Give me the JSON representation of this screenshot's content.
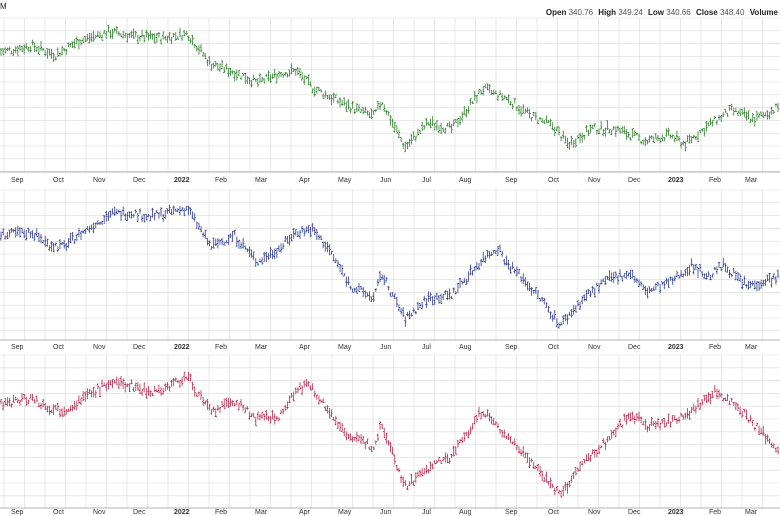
{
  "header": {
    "ticker_fragment": "M",
    "open_label": "Open",
    "open_value": "340.76",
    "high_label": "High",
    "high_value": "349.24",
    "low_label": "Low",
    "low_value": "340.66",
    "close_label": "Close",
    "close_value": "348.40",
    "volume_label": "Volume"
  },
  "colors": {
    "panel_1_bars": "#2e7d2e",
    "panel_2_bars": "#2e3a8c",
    "panel_3_bars": "#b0284e",
    "grid": "#d9d9d9",
    "axis_text": "#333333"
  },
  "chart_data": [
    {
      "type": "ohlc",
      "xlabel_ticks": [
        "Sep",
        "Oct",
        "Nov",
        "Dec",
        "2022",
        "Feb",
        "Mar",
        "Apr",
        "May",
        "Jun",
        "Jul",
        "Aug",
        "Sep",
        "Oct",
        "Nov",
        "Dec",
        "2023",
        "Feb",
        "Mar"
      ],
      "bold_ticks": [
        "2022",
        "2023"
      ],
      "grid": true,
      "shape": [
        [
          0,
          0.78
        ],
        [
          0.04,
          0.82
        ],
        [
          0.07,
          0.76
        ],
        [
          0.1,
          0.85
        ],
        [
          0.14,
          0.91
        ],
        [
          0.17,
          0.88
        ],
        [
          0.21,
          0.87
        ],
        [
          0.24,
          0.9
        ],
        [
          0.27,
          0.7
        ],
        [
          0.3,
          0.65
        ],
        [
          0.33,
          0.58
        ],
        [
          0.36,
          0.64
        ],
        [
          0.38,
          0.66
        ],
        [
          0.4,
          0.55
        ],
        [
          0.43,
          0.47
        ],
        [
          0.46,
          0.4
        ],
        [
          0.48,
          0.36
        ],
        [
          0.49,
          0.46
        ],
        [
          0.52,
          0.16
        ],
        [
          0.55,
          0.32
        ],
        [
          0.58,
          0.28
        ],
        [
          0.62,
          0.54
        ],
        [
          0.65,
          0.48
        ],
        [
          0.68,
          0.37
        ],
        [
          0.71,
          0.3
        ],
        [
          0.73,
          0.18
        ],
        [
          0.76,
          0.28
        ],
        [
          0.79,
          0.28
        ],
        [
          0.83,
          0.2
        ],
        [
          0.86,
          0.24
        ],
        [
          0.88,
          0.18
        ],
        [
          0.91,
          0.3
        ],
        [
          0.94,
          0.4
        ],
        [
          0.97,
          0.34
        ],
        [
          1,
          0.42
        ]
      ]
    },
    {
      "type": "ohlc",
      "xlabel_ticks": [
        "Sep",
        "Oct",
        "Nov",
        "Dec",
        "2022",
        "Feb",
        "Mar",
        "Apr",
        "May",
        "Jun",
        "Jul",
        "Aug",
        "Sep",
        "Oct",
        "Nov",
        "Dec",
        "2023",
        "Feb",
        "Mar"
      ],
      "bold_ticks": [
        "2022",
        "2023"
      ],
      "grid": true,
      "shape": [
        [
          0,
          0.7
        ],
        [
          0.04,
          0.72
        ],
        [
          0.06,
          0.64
        ],
        [
          0.08,
          0.62
        ],
        [
          0.1,
          0.7
        ],
        [
          0.14,
          0.84
        ],
        [
          0.17,
          0.85
        ],
        [
          0.19,
          0.82
        ],
        [
          0.21,
          0.84
        ],
        [
          0.24,
          0.88
        ],
        [
          0.27,
          0.62
        ],
        [
          0.3,
          0.7
        ],
        [
          0.33,
          0.52
        ],
        [
          0.36,
          0.62
        ],
        [
          0.38,
          0.72
        ],
        [
          0.4,
          0.74
        ],
        [
          0.42,
          0.62
        ],
        [
          0.45,
          0.36
        ],
        [
          0.48,
          0.28
        ],
        [
          0.49,
          0.44
        ],
        [
          0.52,
          0.14
        ],
        [
          0.55,
          0.28
        ],
        [
          0.58,
          0.3
        ],
        [
          0.62,
          0.54
        ],
        [
          0.64,
          0.62
        ],
        [
          0.65,
          0.52
        ],
        [
          0.67,
          0.42
        ],
        [
          0.7,
          0.24
        ],
        [
          0.72,
          0.1
        ],
        [
          0.75,
          0.28
        ],
        [
          0.78,
          0.4
        ],
        [
          0.81,
          0.45
        ],
        [
          0.83,
          0.32
        ],
        [
          0.86,
          0.38
        ],
        [
          0.89,
          0.5
        ],
        [
          0.91,
          0.42
        ],
        [
          0.93,
          0.5
        ],
        [
          0.96,
          0.36
        ],
        [
          1,
          0.42
        ]
      ]
    },
    {
      "type": "ohlc",
      "xlabel_ticks": [
        "Sep",
        "Oct",
        "Nov",
        "Dec",
        "2022",
        "Feb",
        "Mar",
        "Apr",
        "May",
        "Jun",
        "Jul",
        "Aug",
        "Sep",
        "Oct",
        "Nov",
        "Dec",
        "2023",
        "Feb",
        "Mar"
      ],
      "bold_ticks": [
        "2022",
        "2023"
      ],
      "grid": true,
      "shape": [
        [
          0,
          0.68
        ],
        [
          0.04,
          0.72
        ],
        [
          0.06,
          0.66
        ],
        [
          0.08,
          0.64
        ],
        [
          0.1,
          0.7
        ],
        [
          0.14,
          0.82
        ],
        [
          0.17,
          0.8
        ],
        [
          0.19,
          0.76
        ],
        [
          0.21,
          0.78
        ],
        [
          0.24,
          0.86
        ],
        [
          0.27,
          0.62
        ],
        [
          0.3,
          0.7
        ],
        [
          0.33,
          0.58
        ],
        [
          0.36,
          0.6
        ],
        [
          0.38,
          0.78
        ],
        [
          0.4,
          0.8
        ],
        [
          0.42,
          0.64
        ],
        [
          0.45,
          0.46
        ],
        [
          0.48,
          0.4
        ],
        [
          0.49,
          0.56
        ],
        [
          0.52,
          0.14
        ],
        [
          0.55,
          0.26
        ],
        [
          0.58,
          0.34
        ],
        [
          0.62,
          0.64
        ],
        [
          0.64,
          0.52
        ],
        [
          0.67,
          0.38
        ],
        [
          0.7,
          0.2
        ],
        [
          0.72,
          0.08
        ],
        [
          0.75,
          0.3
        ],
        [
          0.78,
          0.44
        ],
        [
          0.81,
          0.62
        ],
        [
          0.83,
          0.54
        ],
        [
          0.86,
          0.56
        ],
        [
          0.89,
          0.64
        ],
        [
          0.92,
          0.76
        ],
        [
          0.95,
          0.66
        ],
        [
          0.97,
          0.54
        ],
        [
          1,
          0.38
        ]
      ]
    }
  ]
}
